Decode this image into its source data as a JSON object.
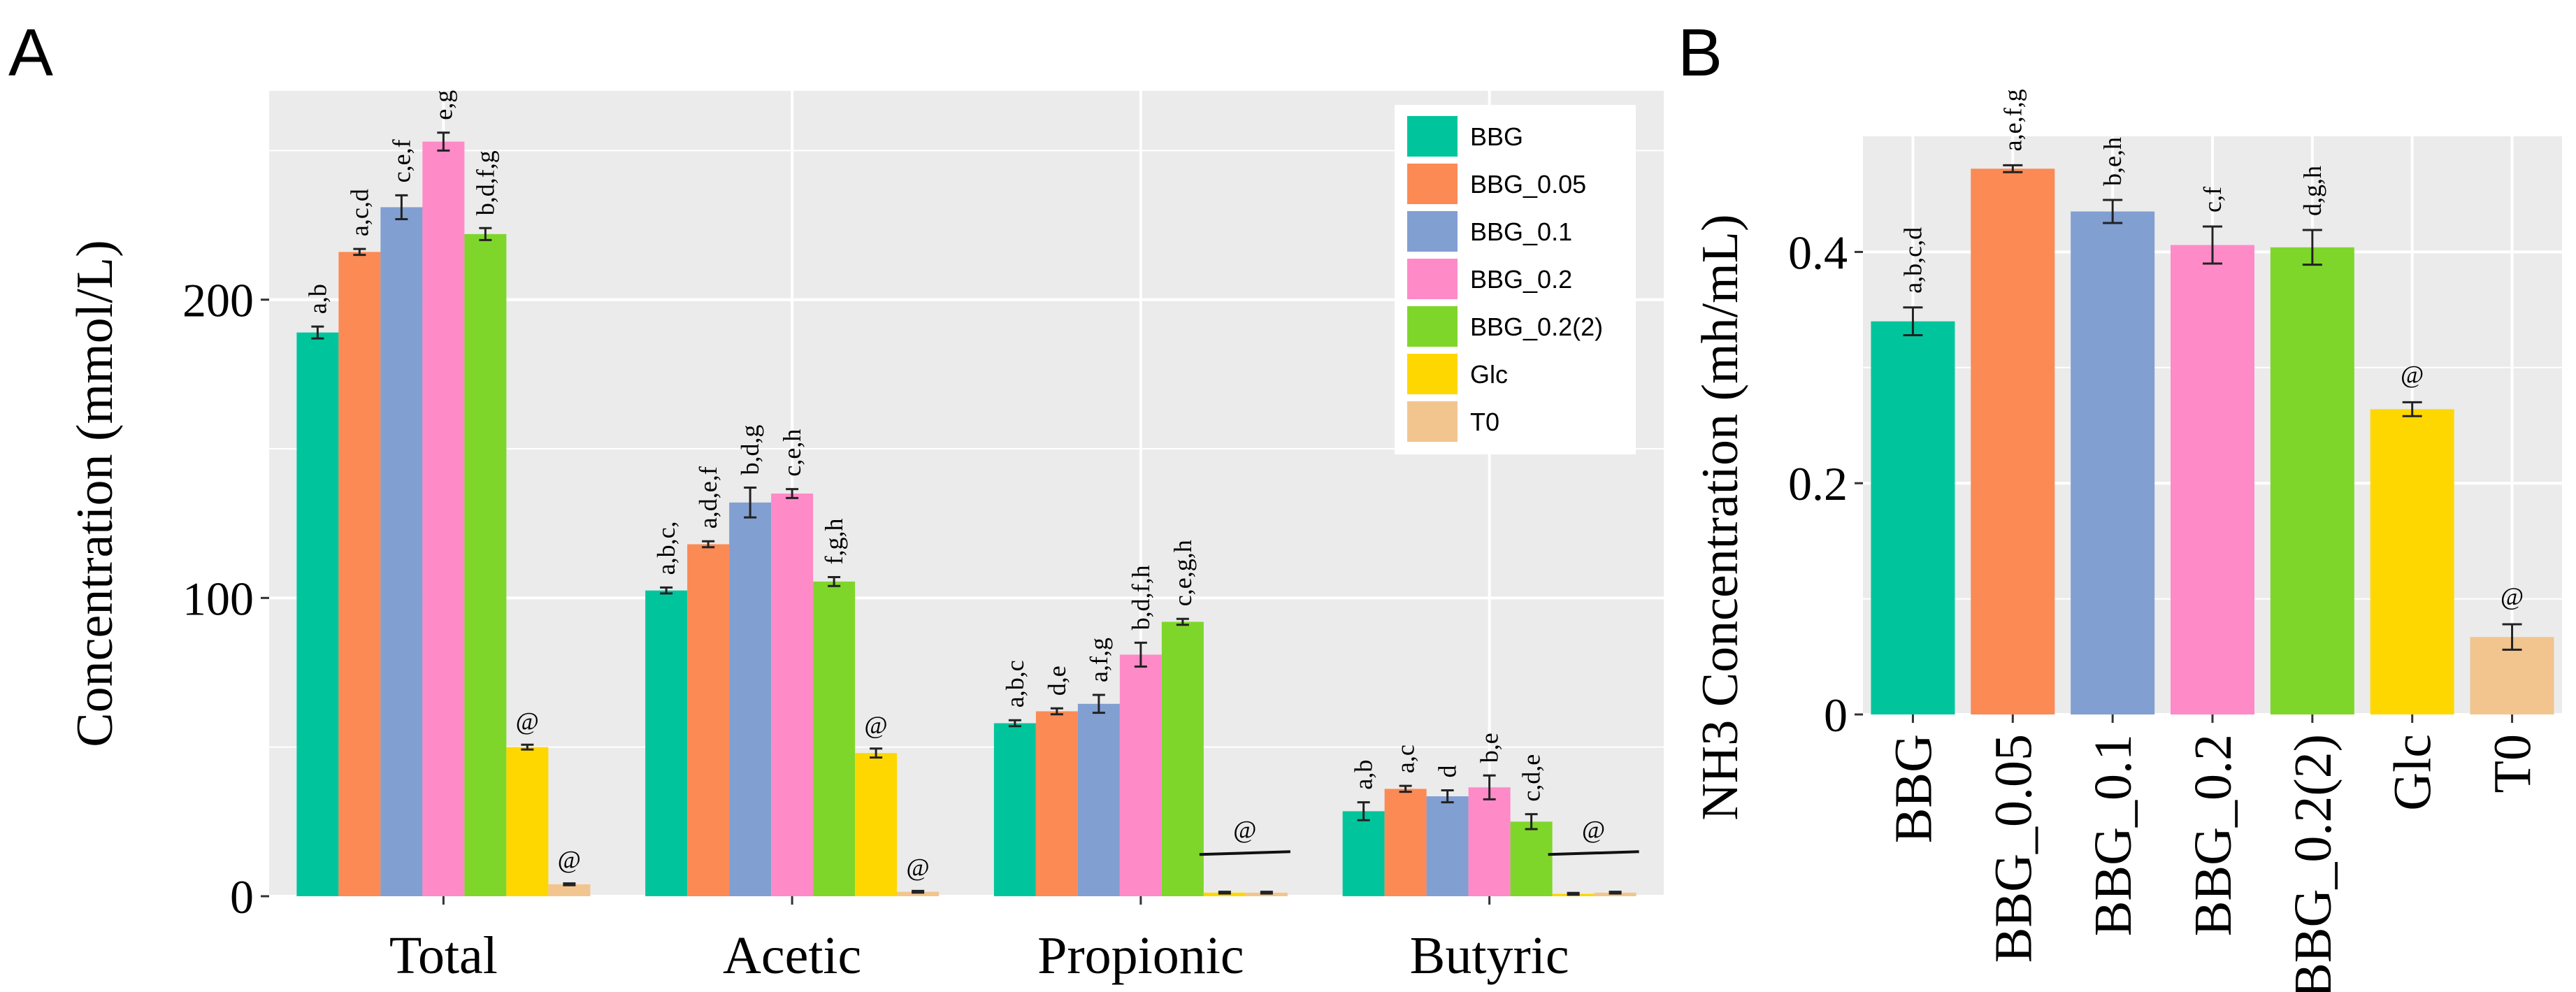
{
  "panel_a_letter": "A",
  "panel_b_letter": "B",
  "colors": {
    "BBG": "#00c59c",
    "BBG_0.05": "#fb8a55",
    "BBG_0.1": "#819fd1",
    "BBG_0.2": "#ff8ac8",
    "BBG_0.2(2)": "#7fd62a",
    "Glc": "#ffd700",
    "T0": "#f2c58f",
    "panel_bg": "#ebebeb",
    "grid": "#ffffff"
  },
  "chart_data": [
    {
      "type": "bar",
      "panel": "A",
      "title": "",
      "xlabel": "",
      "ylabel": "Concentration (mmol/L)",
      "ylim": [
        0,
        270
      ],
      "yticks": [
        0,
        100,
        200
      ],
      "grid": true,
      "legend_position": "top-right",
      "categories": [
        "Total",
        "Acetic",
        "Propionic",
        "Butyric"
      ],
      "series": [
        {
          "name": "BBG",
          "values": [
            189,
            102.5,
            58,
            28.5
          ],
          "errors": [
            2,
            1,
            1,
            3
          ],
          "labels": [
            "a,b",
            "a,b,c,",
            "a,b,c",
            "a,b"
          ]
        },
        {
          "name": "BBG_0.05",
          "values": [
            216,
            118,
            62,
            36
          ],
          "errors": [
            1,
            1,
            1,
            1
          ],
          "labels": [
            "a,c,d",
            "a,d,e,f",
            "d,e",
            "a,c"
          ]
        },
        {
          "name": "BBG_0.1",
          "values": [
            231,
            132,
            64.5,
            33.5
          ],
          "errors": [
            4,
            5,
            3,
            2
          ],
          "labels": [
            "c,e,f",
            "b,d,g",
            "a,f,g",
            "d"
          ]
        },
        {
          "name": "BBG_0.2",
          "values": [
            253,
            135,
            81,
            36.5
          ],
          "errors": [
            3,
            1.5,
            4,
            4
          ],
          "labels": [
            "e,g",
            "c,e,h",
            "b,d,f,h",
            "b,e"
          ]
        },
        {
          "name": "BBG_0.2(2)",
          "values": [
            222,
            105.5,
            92,
            25
          ],
          "errors": [
            2,
            1.5,
            1,
            2.5
          ],
          "labels": [
            "b,d,f,g",
            "f,g,h",
            "c,e,g,h",
            "c,d,e"
          ]
        },
        {
          "name": "Glc",
          "values": [
            50,
            48,
            1.2,
            0.8
          ],
          "errors": [
            0.8,
            1.5,
            0.3,
            0.3
          ],
          "labels": [
            "@",
            "@",
            "",
            ""
          ]
        },
        {
          "name": "T0",
          "values": [
            4,
            1.5,
            1.2,
            1.2
          ],
          "errors": [
            0.3,
            0.3,
            0.3,
            0.3
          ],
          "labels": [
            "@",
            "@",
            "",
            ""
          ]
        }
      ],
      "group_annotations": [
        {
          "category": "Propionic",
          "label": "@",
          "bracket": true
        },
        {
          "category": "Butyric",
          "label": "@",
          "bracket": true
        }
      ],
      "legend": [
        "BBG",
        "BBG_0.05",
        "BBG_0.1",
        "BBG_0.2",
        "BBG_0.2(2)",
        "Glc",
        "T0"
      ]
    },
    {
      "type": "bar",
      "panel": "B",
      "title": "",
      "xlabel": "",
      "ylabel": "NH3 Concentration (mh/mL)",
      "ylim": [
        0,
        0.5
      ],
      "yticks": [
        0,
        0.2,
        0.4
      ],
      "ytick_labels": [
        "0",
        "0.2",
        "0.4"
      ],
      "grid": true,
      "categories": [
        "BBG",
        "BBG_0.05",
        "BBG_0.1",
        "BBG_0.2",
        "BBG_0.2(2)",
        "Glc",
        "T0"
      ],
      "values": [
        0.34,
        0.472,
        0.435,
        0.406,
        0.404,
        0.264,
        0.067
      ],
      "errors": [
        0.012,
        0.003,
        0.01,
        0.016,
        0.015,
        0.006,
        0.011
      ],
      "labels": [
        "a,b,c,d",
        "a,e,f,g",
        "b,e,h",
        "c,f",
        "d,g,h",
        "@",
        "@"
      ]
    }
  ]
}
